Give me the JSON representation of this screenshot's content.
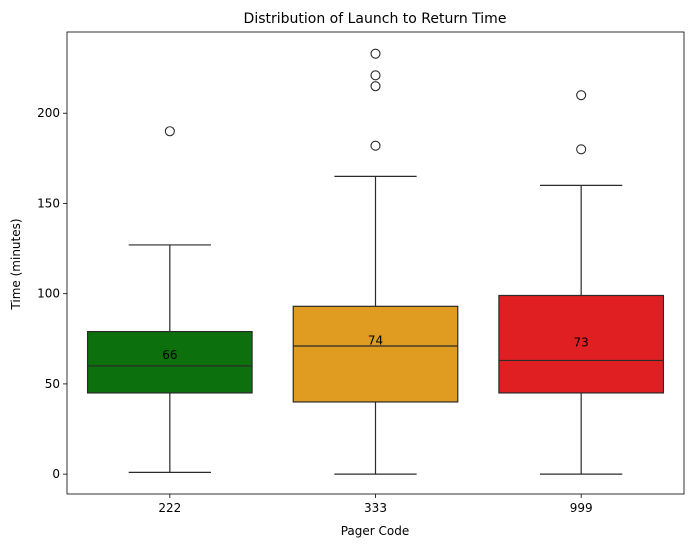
{
  "chart_data": {
    "type": "box",
    "title": "Distribution of Launch to Return Time",
    "xlabel": "Pager Code",
    "ylabel": "Time (minutes)",
    "ylim": [
      -11,
      245
    ],
    "yticks": [
      0,
      50,
      100,
      150,
      200
    ],
    "yticklabels": [
      "0",
      "50",
      "100",
      "150",
      "200"
    ],
    "categories": [
      "222",
      "333",
      "999"
    ],
    "boxes": [
      {
        "category": "222",
        "color": "#0c700c",
        "whisker_low": 1,
        "q1": 45,
        "median": 60,
        "q3": 79,
        "whisker_high": 127,
        "outliers": [
          190
        ],
        "label_value": 66,
        "label": "66"
      },
      {
        "category": "333",
        "color": "#e09c21",
        "whisker_low": 0,
        "q1": 40,
        "median": 71,
        "q3": 93,
        "whisker_high": 165,
        "outliers": [
          182,
          215,
          221,
          233
        ],
        "label_value": 74,
        "label": "74"
      },
      {
        "category": "999",
        "color": "#e01f22",
        "whisker_low": 0,
        "q1": 45,
        "median": 63,
        "q3": 99,
        "whisker_high": 160,
        "outliers": [
          180,
          210
        ],
        "label_value": 73,
        "label": "73"
      }
    ]
  }
}
